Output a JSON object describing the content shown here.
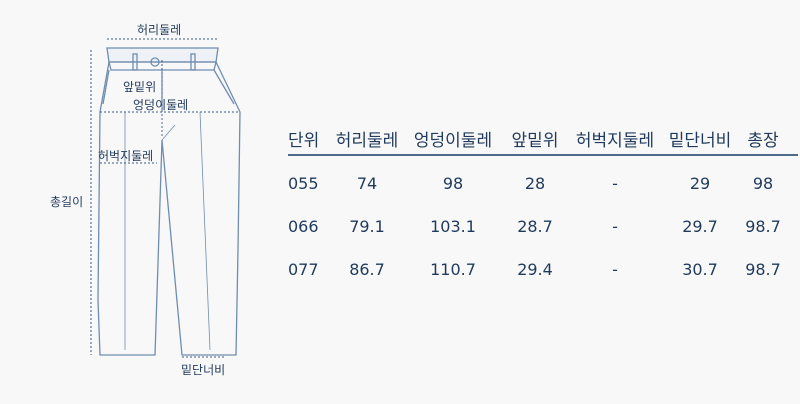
{
  "diagram": {
    "labels": {
      "waist": "허리둘레",
      "rise": "앞밑위",
      "hip": "엉덩이둘레",
      "thigh": "허벅지둘레",
      "length": "총길이",
      "hem": "밑단너비"
    },
    "line_color": "#6f8db0"
  },
  "table": {
    "headers": [
      "단위",
      "허리둘레",
      "엉덩이둘레",
      "앞밑위",
      "허벅지둘레",
      "밑단너비",
      "총장"
    ],
    "rows": [
      [
        "055",
        "74",
        "98",
        "28",
        "-",
        "29",
        "98"
      ],
      [
        "066",
        "79.1",
        "103.1",
        "28.7",
        "-",
        "29.7",
        "98.7"
      ],
      [
        "077",
        "86.7",
        "110.7",
        "29.4",
        "-",
        "30.7",
        "98.7"
      ]
    ]
  },
  "colors": {
    "text": "#1f3a5c",
    "rule": "#4a6a8c",
    "background": "#f8f8f8"
  }
}
